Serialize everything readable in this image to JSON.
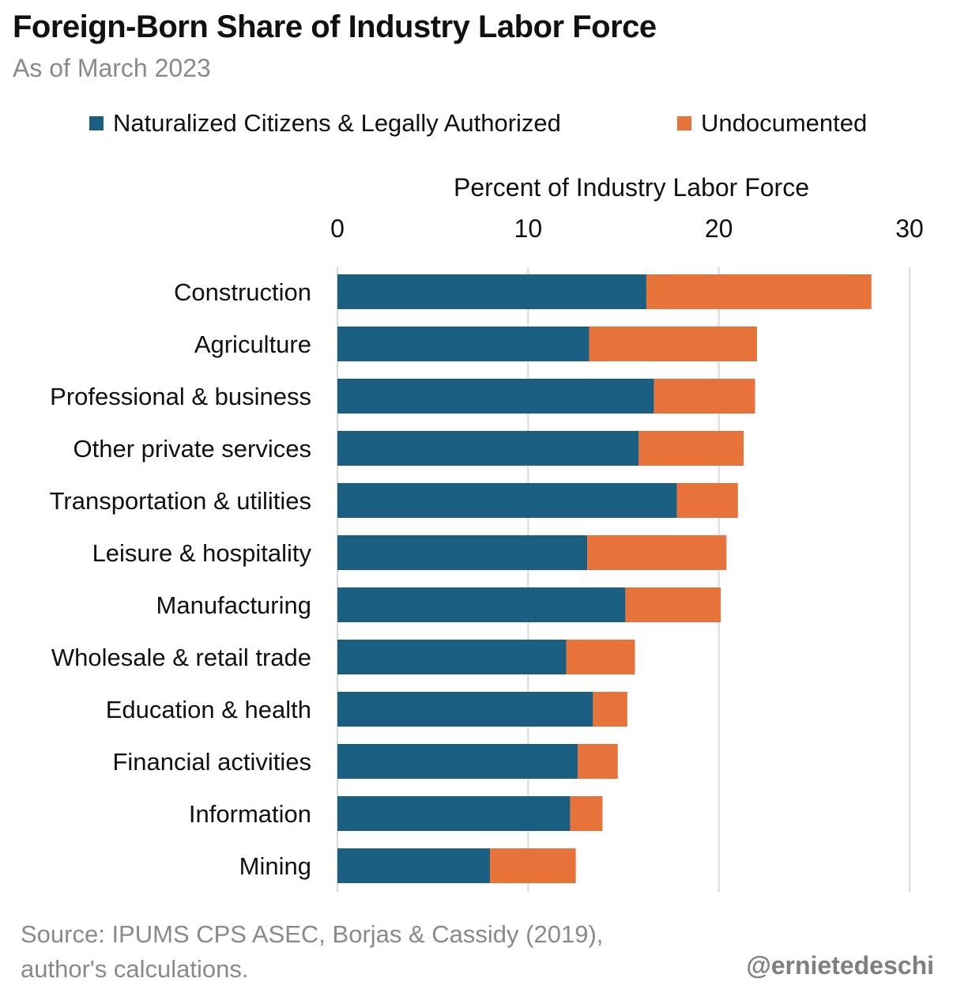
{
  "header": {
    "title": "Foreign-Born Share of Industry Labor Force",
    "subtitle": "As of March 2023"
  },
  "footer": {
    "source_line1": "Source: IPUMS CPS ASEC, Borjas & Cassidy (2019),",
    "source_line2": "author's calculations.",
    "handle": "@ernietedeschi"
  },
  "colors": {
    "naturalized": "#1a5f82",
    "undocumented": "#e8733a",
    "grid": "#d9d9d9"
  },
  "chart_data": {
    "type": "bar",
    "orientation": "horizontal",
    "stacked": true,
    "xlabel": "Percent of Industry Labor Force",
    "xlim": [
      0,
      30
    ],
    "xticks": [
      0,
      10,
      20,
      30
    ],
    "x_axis_position": "top",
    "grid": true,
    "legend_position": "top",
    "categories": [
      "Construction",
      "Agriculture",
      "Professional & business",
      "Other private services",
      "Transportation & utilities",
      "Leisure & hospitality",
      "Manufacturing",
      "Wholesale & retail trade",
      "Education & health",
      "Financial activities",
      "Information",
      "Mining"
    ],
    "series": [
      {
        "name": "Naturalized Citizens & Legally Authorized",
        "values": [
          16.2,
          13.2,
          16.6,
          15.8,
          17.8,
          13.1,
          15.1,
          12.0,
          13.4,
          12.6,
          12.2,
          8.0
        ]
      },
      {
        "name": "Undocumented",
        "values": [
          11.8,
          8.8,
          5.3,
          5.5,
          3.2,
          7.3,
          5.0,
          3.6,
          1.8,
          2.1,
          1.7,
          4.5
        ]
      }
    ]
  }
}
